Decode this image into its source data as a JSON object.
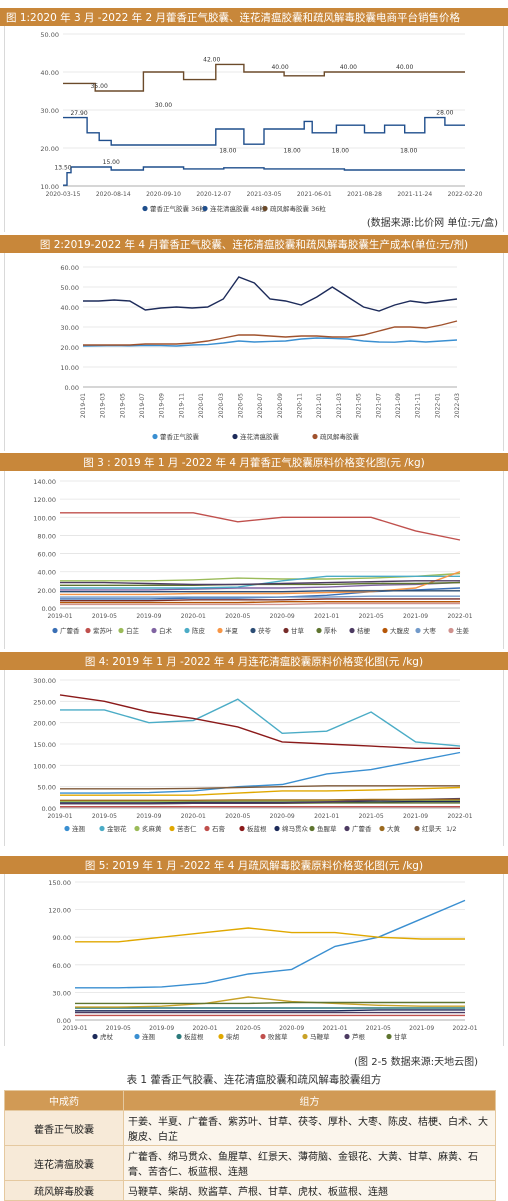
{
  "titles": {
    "fig1": "图 1:2020 年 3 月 -2022 年 2 月藿香正气胶囊、连花清瘟胶囊和疏风解毒胶囊电商平台销售价格",
    "fig2": "图 2:2019-2022 年 4 月藿香正气胶囊、连花清瘟胶囊和疏风解毒胶囊生产成本(单位:元/剂)",
    "fig3": "图 3 : 2019 年 1 月 -2022 年 4 月藿香正气胶囊原料价格变化图(元 /kg)",
    "fig4": "图 4: 2019 年 1 月 -2022 年 4 月连花清瘟胶囊原料价格变化图(元 /kg)",
    "fig5": "图 5: 2019 年 1 月 -2022 年 4 月疏风解毒胶囊原料价格变化图(元 /kg)",
    "table": "表 1 藿香正气胶囊、连花清瘟胶囊和疏风解毒胶囊组方"
  },
  "sources": {
    "fig1": "(数据来源:比价网  单位:元/盒)",
    "fig5": "(图 2-5 数据来源:天地云图)"
  },
  "chart_data": [
    {
      "id": "fig1",
      "type": "line",
      "ylim": [
        10,
        50
      ],
      "yticks": [
        "10.00",
        "20.00",
        "30.00",
        "40.00",
        "50.00"
      ],
      "xticks": [
        "2020-03-15",
        "2020-08-14",
        "2020-09-10",
        "2020-12-07",
        "2021-03-05",
        "2021-06-01",
        "2021-08-28",
        "2021-11-24",
        "2022-02-20"
      ],
      "point_labels": [
        {
          "x": 0.0,
          "y": 13.5,
          "text": "13.50"
        },
        {
          "x": 0.04,
          "y": 27.9,
          "text": "27.90"
        },
        {
          "x": 0.09,
          "y": 35.0,
          "text": "35.00"
        },
        {
          "x": 0.25,
          "y": 30.0,
          "text": "30.00"
        },
        {
          "x": 0.37,
          "y": 42.0,
          "text": "42.00"
        },
        {
          "x": 0.12,
          "y": 15.0,
          "text": "15.00"
        },
        {
          "x": 0.41,
          "y": 18.0,
          "text": "18.00"
        },
        {
          "x": 0.54,
          "y": 40.0,
          "text": "40.00"
        },
        {
          "x": 0.57,
          "y": 18.0,
          "text": "18.00"
        },
        {
          "x": 0.71,
          "y": 40.0,
          "text": "40.00"
        },
        {
          "x": 0.85,
          "y": 40.0,
          "text": "40.00"
        },
        {
          "x": 0.69,
          "y": 18.0,
          "text": "18.00"
        },
        {
          "x": 0.86,
          "y": 18.0,
          "text": "18.00"
        },
        {
          "x": 0.95,
          "y": 28.0,
          "text": "28.00"
        }
      ],
      "series": [
        {
          "name": "藿香正气胶囊 36粒",
          "color": "#1f4e8c",
          "values": [
            [
              0,
              10.2
            ],
            [
              0.01,
              13.5
            ],
            [
              0.02,
              15
            ],
            [
              0.1,
              15
            ],
            [
              0.12,
              14.2
            ],
            [
              0.2,
              15
            ],
            [
              0.3,
              14.5
            ],
            [
              0.4,
              14.8
            ],
            [
              0.5,
              14.5
            ],
            [
              0.6,
              14.5
            ],
            [
              0.7,
              14.2
            ],
            [
              0.8,
              14.2
            ],
            [
              0.9,
              14.2
            ],
            [
              1.0,
              14.2
            ]
          ]
        },
        {
          "name": "连花清瘟胶囊 48粒",
          "color": "#1f4e8c",
          "values": [
            [
              0,
              28
            ],
            [
              0.04,
              28
            ],
            [
              0.06,
              24
            ],
            [
              0.09,
              22
            ],
            [
              0.12,
              20.8
            ],
            [
              0.3,
              20.8
            ],
            [
              0.36,
              20.8
            ],
            [
              0.38,
              25
            ],
            [
              0.45,
              21
            ],
            [
              0.5,
              25
            ],
            [
              0.6,
              27
            ],
            [
              0.62,
              24
            ],
            [
              0.68,
              26
            ],
            [
              0.75,
              24
            ],
            [
              0.8,
              26
            ],
            [
              0.85,
              24
            ],
            [
              0.9,
              28
            ],
            [
              0.95,
              26
            ],
            [
              1.0,
              26
            ]
          ]
        },
        {
          "name": "疏风解毒胶囊 36粒",
          "color": "#6b4a2a",
          "values": [
            [
              0,
              37
            ],
            [
              0.05,
              37
            ],
            [
              0.08,
              35
            ],
            [
              0.14,
              35
            ],
            [
              0.2,
              40
            ],
            [
              0.3,
              38
            ],
            [
              0.38,
              42
            ],
            [
              0.45,
              40
            ],
            [
              0.55,
              39
            ],
            [
              0.65,
              40
            ],
            [
              0.75,
              40
            ],
            [
              0.85,
              40
            ],
            [
              0.95,
              40
            ],
            [
              1.0,
              40
            ]
          ]
        }
      ],
      "legend": [
        "藿香正气胶囊 36粒",
        "连花清瘟胶囊 48粒",
        "疏风解毒胶囊 36粒"
      ]
    },
    {
      "id": "fig2",
      "type": "line",
      "ylim": [
        0,
        60
      ],
      "yticks": [
        "0.00",
        "10.00",
        "20.00",
        "30.00",
        "40.00",
        "50.00",
        "60.00"
      ],
      "xticks": [
        "2019-01",
        "2019-03",
        "2019-05",
        "2019-07",
        "2019-09",
        "2019-11",
        "2020-01",
        "2020-03",
        "2020-05",
        "2020-07",
        "2020-09",
        "2020-11",
        "2021-01",
        "2021-03",
        "2021-05",
        "2021-07",
        "2021-09",
        "2021-11",
        "2022-01",
        "2022-03"
      ],
      "series": [
        {
          "name": "藿香正气胶囊",
          "color": "#3a8fd1",
          "values": [
            20.5,
            20.6,
            20.7,
            20.6,
            20.8,
            20.7,
            20.5,
            21,
            21.2,
            22,
            23,
            22.5,
            22.8,
            23,
            24,
            24.5,
            24.3,
            24,
            23,
            22.5,
            22.4,
            23,
            22.5,
            23,
            23.5
          ]
        },
        {
          "name": "连花清瘟胶囊",
          "color": "#1d2b5a",
          "values": [
            43,
            43,
            43.5,
            43,
            38.5,
            39.5,
            40,
            39.5,
            40,
            44,
            55,
            52,
            44,
            43,
            41,
            45,
            50,
            45,
            40,
            38,
            41,
            43,
            42,
            43,
            44
          ]
        },
        {
          "name": "疏风解毒胶囊",
          "color": "#a0522d",
          "values": [
            21,
            21,
            21,
            21,
            21.5,
            21.5,
            21.5,
            22,
            23,
            24.5,
            26,
            26,
            25.5,
            25,
            25.5,
            25.5,
            25,
            25,
            26,
            28,
            30,
            30,
            29.5,
            31,
            33
          ]
        }
      ],
      "legend": [
        "藿香正气胶囊",
        "连花清瘟胶囊",
        "疏风解毒胶囊"
      ]
    },
    {
      "id": "fig3",
      "type": "line",
      "ylim": [
        0,
        140
      ],
      "yticks": [
        "0.00",
        "20.00",
        "40.00",
        "60.00",
        "80.00",
        "100.00",
        "120.00",
        "140.00"
      ],
      "xticks": [
        "2019-01",
        "2019-05",
        "2019-09",
        "2020-01",
        "2020-05",
        "2020-09",
        "2021-01",
        "2021-05",
        "2021-09",
        "2022-01"
      ],
      "series": [
        {
          "name": "广藿香",
          "color": "#3a6fb5",
          "values": [
            10,
            10,
            10,
            11,
            11,
            12,
            14,
            18,
            20,
            22
          ]
        },
        {
          "name": "紫苏叶",
          "color": "#c0504d",
          "values": [
            105,
            105,
            105,
            105,
            95,
            100,
            100,
            100,
            85,
            75
          ]
        },
        {
          "name": "白芷",
          "color": "#9bbb59",
          "values": [
            30,
            30,
            30,
            31,
            33,
            32,
            32,
            33,
            35,
            38
          ]
        },
        {
          "name": "白术",
          "color": "#8064a2",
          "values": [
            20,
            20,
            20,
            21,
            22,
            22,
            23,
            25,
            26,
            28
          ]
        },
        {
          "name": "陈皮",
          "color": "#4bacc6",
          "values": [
            22,
            22,
            22,
            22,
            23,
            30,
            35,
            35,
            35,
            35
          ]
        },
        {
          "name": "半夏",
          "color": "#f79646",
          "values": [
            15,
            15,
            15,
            16,
            16,
            16,
            17,
            18,
            22,
            40
          ]
        },
        {
          "name": "茯苓",
          "color": "#2c4d75",
          "values": [
            18,
            18,
            18,
            18,
            18,
            18,
            19,
            19,
            19,
            19
          ]
        },
        {
          "name": "甘草",
          "color": "#772c2a",
          "values": [
            8,
            8,
            8,
            9,
            9,
            9,
            10,
            10,
            10,
            10
          ]
        },
        {
          "name": "厚朴",
          "color": "#5f7530",
          "values": [
            25,
            25,
            25,
            25,
            26,
            26,
            26,
            27,
            27,
            28
          ]
        },
        {
          "name": "桔梗",
          "color": "#4d3b62",
          "values": [
            28,
            28,
            27,
            26,
            26,
            27,
            28,
            29,
            30,
            30
          ]
        },
        {
          "name": "大腹皮",
          "color": "#b65708",
          "values": [
            6,
            6,
            6,
            6,
            6,
            7,
            7,
            7,
            7,
            7
          ]
        },
        {
          "name": "大枣",
          "color": "#729aca",
          "values": [
            12,
            12,
            12,
            12,
            12,
            12,
            12,
            13,
            13,
            13
          ]
        },
        {
          "name": "生姜",
          "color": "#d0928e",
          "values": [
            4,
            4,
            4,
            4,
            4,
            4,
            5,
            5,
            5,
            5
          ]
        }
      ],
      "legend": [
        "广藿香",
        "紫苏叶",
        "白芷",
        "白术",
        "陈皮",
        "半夏",
        "茯苓",
        "甘草",
        "厚朴",
        "桔梗",
        "大腹皮",
        "大枣",
        "生姜"
      ]
    },
    {
      "id": "fig4",
      "type": "line",
      "ylim": [
        0,
        300
      ],
      "yticks": [
        "0.00",
        "50.00",
        "100.00",
        "150.00",
        "200.00",
        "250.00",
        "300.00"
      ],
      "xticks": [
        "2019-01",
        "2019-05",
        "2019-09",
        "2020-01",
        "2020-05",
        "2020-09",
        "2021-01",
        "2021-05",
        "2021-09",
        "2022-01"
      ],
      "series": [
        {
          "name": "连翘",
          "color": "#3a8fd1",
          "values": [
            35,
            35,
            36,
            40,
            50,
            55,
            80,
            90,
            110,
            130
          ]
        },
        {
          "name": "金银花",
          "color": "#4bacc6",
          "values": [
            230,
            230,
            200,
            205,
            255,
            175,
            180,
            225,
            155,
            145
          ]
        },
        {
          "name": "炙麻黄",
          "color": "#9bbb59",
          "values": [
            15,
            15,
            15,
            15,
            16,
            16,
            17,
            17,
            18,
            18
          ]
        },
        {
          "name": "苦杏仁",
          "color": "#e0a800",
          "values": [
            30,
            30,
            30,
            30,
            35,
            40,
            40,
            42,
            45,
            48
          ]
        },
        {
          "name": "石膏",
          "color": "#c0504d",
          "values": [
            3,
            3,
            3,
            3,
            3,
            3,
            3,
            3,
            3,
            3
          ]
        },
        {
          "name": "板蓝根",
          "color": "#8b1a1a",
          "values": [
            265,
            250,
            225,
            210,
            190,
            155,
            150,
            145,
            140,
            140
          ]
        },
        {
          "name": "绵马贯众",
          "color": "#1d2b5a",
          "values": [
            12,
            12,
            12,
            13,
            13,
            13,
            14,
            14,
            15,
            15
          ]
        },
        {
          "name": "鱼腥草",
          "color": "#5f7530",
          "values": [
            10,
            10,
            10,
            11,
            11,
            11,
            12,
            12,
            12,
            12
          ]
        },
        {
          "name": "广藿香",
          "color": "#4d3b62",
          "values": [
            10,
            10,
            10,
            11,
            11,
            12,
            14,
            18,
            20,
            22
          ]
        },
        {
          "name": "大黄",
          "color": "#9c6b1f",
          "values": [
            18,
            18,
            18,
            18,
            19,
            19,
            19,
            20,
            20,
            20
          ]
        },
        {
          "name": "红景天",
          "color": "#7f5a3a",
          "values": [
            45,
            45,
            45,
            46,
            48,
            50,
            52,
            52,
            52,
            52
          ]
        }
      ],
      "legend": [
        "连翘",
        "金银花",
        "炙麻黄",
        "苦杏仁",
        "石膏",
        "板蓝根",
        "绵马贯众",
        "鱼腥草",
        "广藿香",
        "大黄",
        "红景天"
      ],
      "legend_page": "1/2"
    },
    {
      "id": "fig5",
      "type": "line",
      "ylim": [
        0,
        150
      ],
      "yticks": [
        "0.00",
        "30.00",
        "60.00",
        "90.00",
        "120.00",
        "150.00"
      ],
      "xticks": [
        "2019-01",
        "2019-05",
        "2019-09",
        "2020-01",
        "2020-05",
        "2020-09",
        "2021-01",
        "2021-05",
        "2021-09",
        "2022-01"
      ],
      "series": [
        {
          "name": "虎杖",
          "color": "#1d2b5a",
          "values": [
            10,
            10,
            10,
            10,
            10,
            10,
            10,
            11,
            11,
            11
          ]
        },
        {
          "name": "连翘",
          "color": "#3a8fd1",
          "values": [
            35,
            35,
            36,
            40,
            50,
            55,
            80,
            90,
            110,
            130
          ]
        },
        {
          "name": "板蓝根",
          "color": "#2c7a7b",
          "values": [
            13,
            13,
            13,
            13,
            13,
            13,
            13,
            13,
            13,
            13
          ]
        },
        {
          "name": "柴胡",
          "color": "#e0a800",
          "values": [
            85,
            85,
            90,
            95,
            100,
            95,
            95,
            90,
            88,
            88
          ]
        },
        {
          "name": "败酱草",
          "color": "#c0504d",
          "values": [
            5,
            5,
            5,
            5,
            5,
            5,
            5,
            5,
            5,
            5
          ]
        },
        {
          "name": "马鞭草",
          "color": "#c9a227",
          "values": [
            14,
            14,
            15,
            18,
            25,
            20,
            18,
            16,
            15,
            15
          ]
        },
        {
          "name": "芦根",
          "color": "#4d3b62",
          "values": [
            8,
            8,
            8,
            8,
            8,
            8,
            8,
            8,
            8,
            8
          ]
        },
        {
          "name": "甘草",
          "color": "#5f7530",
          "values": [
            18,
            18,
            18,
            18,
            18,
            19,
            19,
            19,
            19,
            19
          ]
        }
      ],
      "legend": [
        "虎杖",
        "连翘",
        "板蓝根",
        "柴胡",
        "败酱草",
        "马鞭草",
        "芦根",
        "甘草"
      ]
    }
  ],
  "table": {
    "headers": [
      "中成药",
      "组方"
    ],
    "rows": [
      {
        "name": "藿香正气胶囊",
        "recipe": "干姜、半夏、广藿香、紫苏叶、甘草、茯苓、厚朴、大枣、陈皮、桔梗、白术、大腹皮、白芷"
      },
      {
        "name": "连花清瘟胶囊",
        "recipe": "广藿香、绵马贯众、鱼腥草、红景天、薄荷脑、金银花、大黄、甘草、麻黄、石膏、苦杏仁、板蓝根、连翘"
      },
      {
        "name": "疏风解毒胶囊",
        "recipe": "马鞭草、柴胡、败酱草、芦根、甘草、虎杖、板蓝根、连翘"
      }
    ]
  }
}
